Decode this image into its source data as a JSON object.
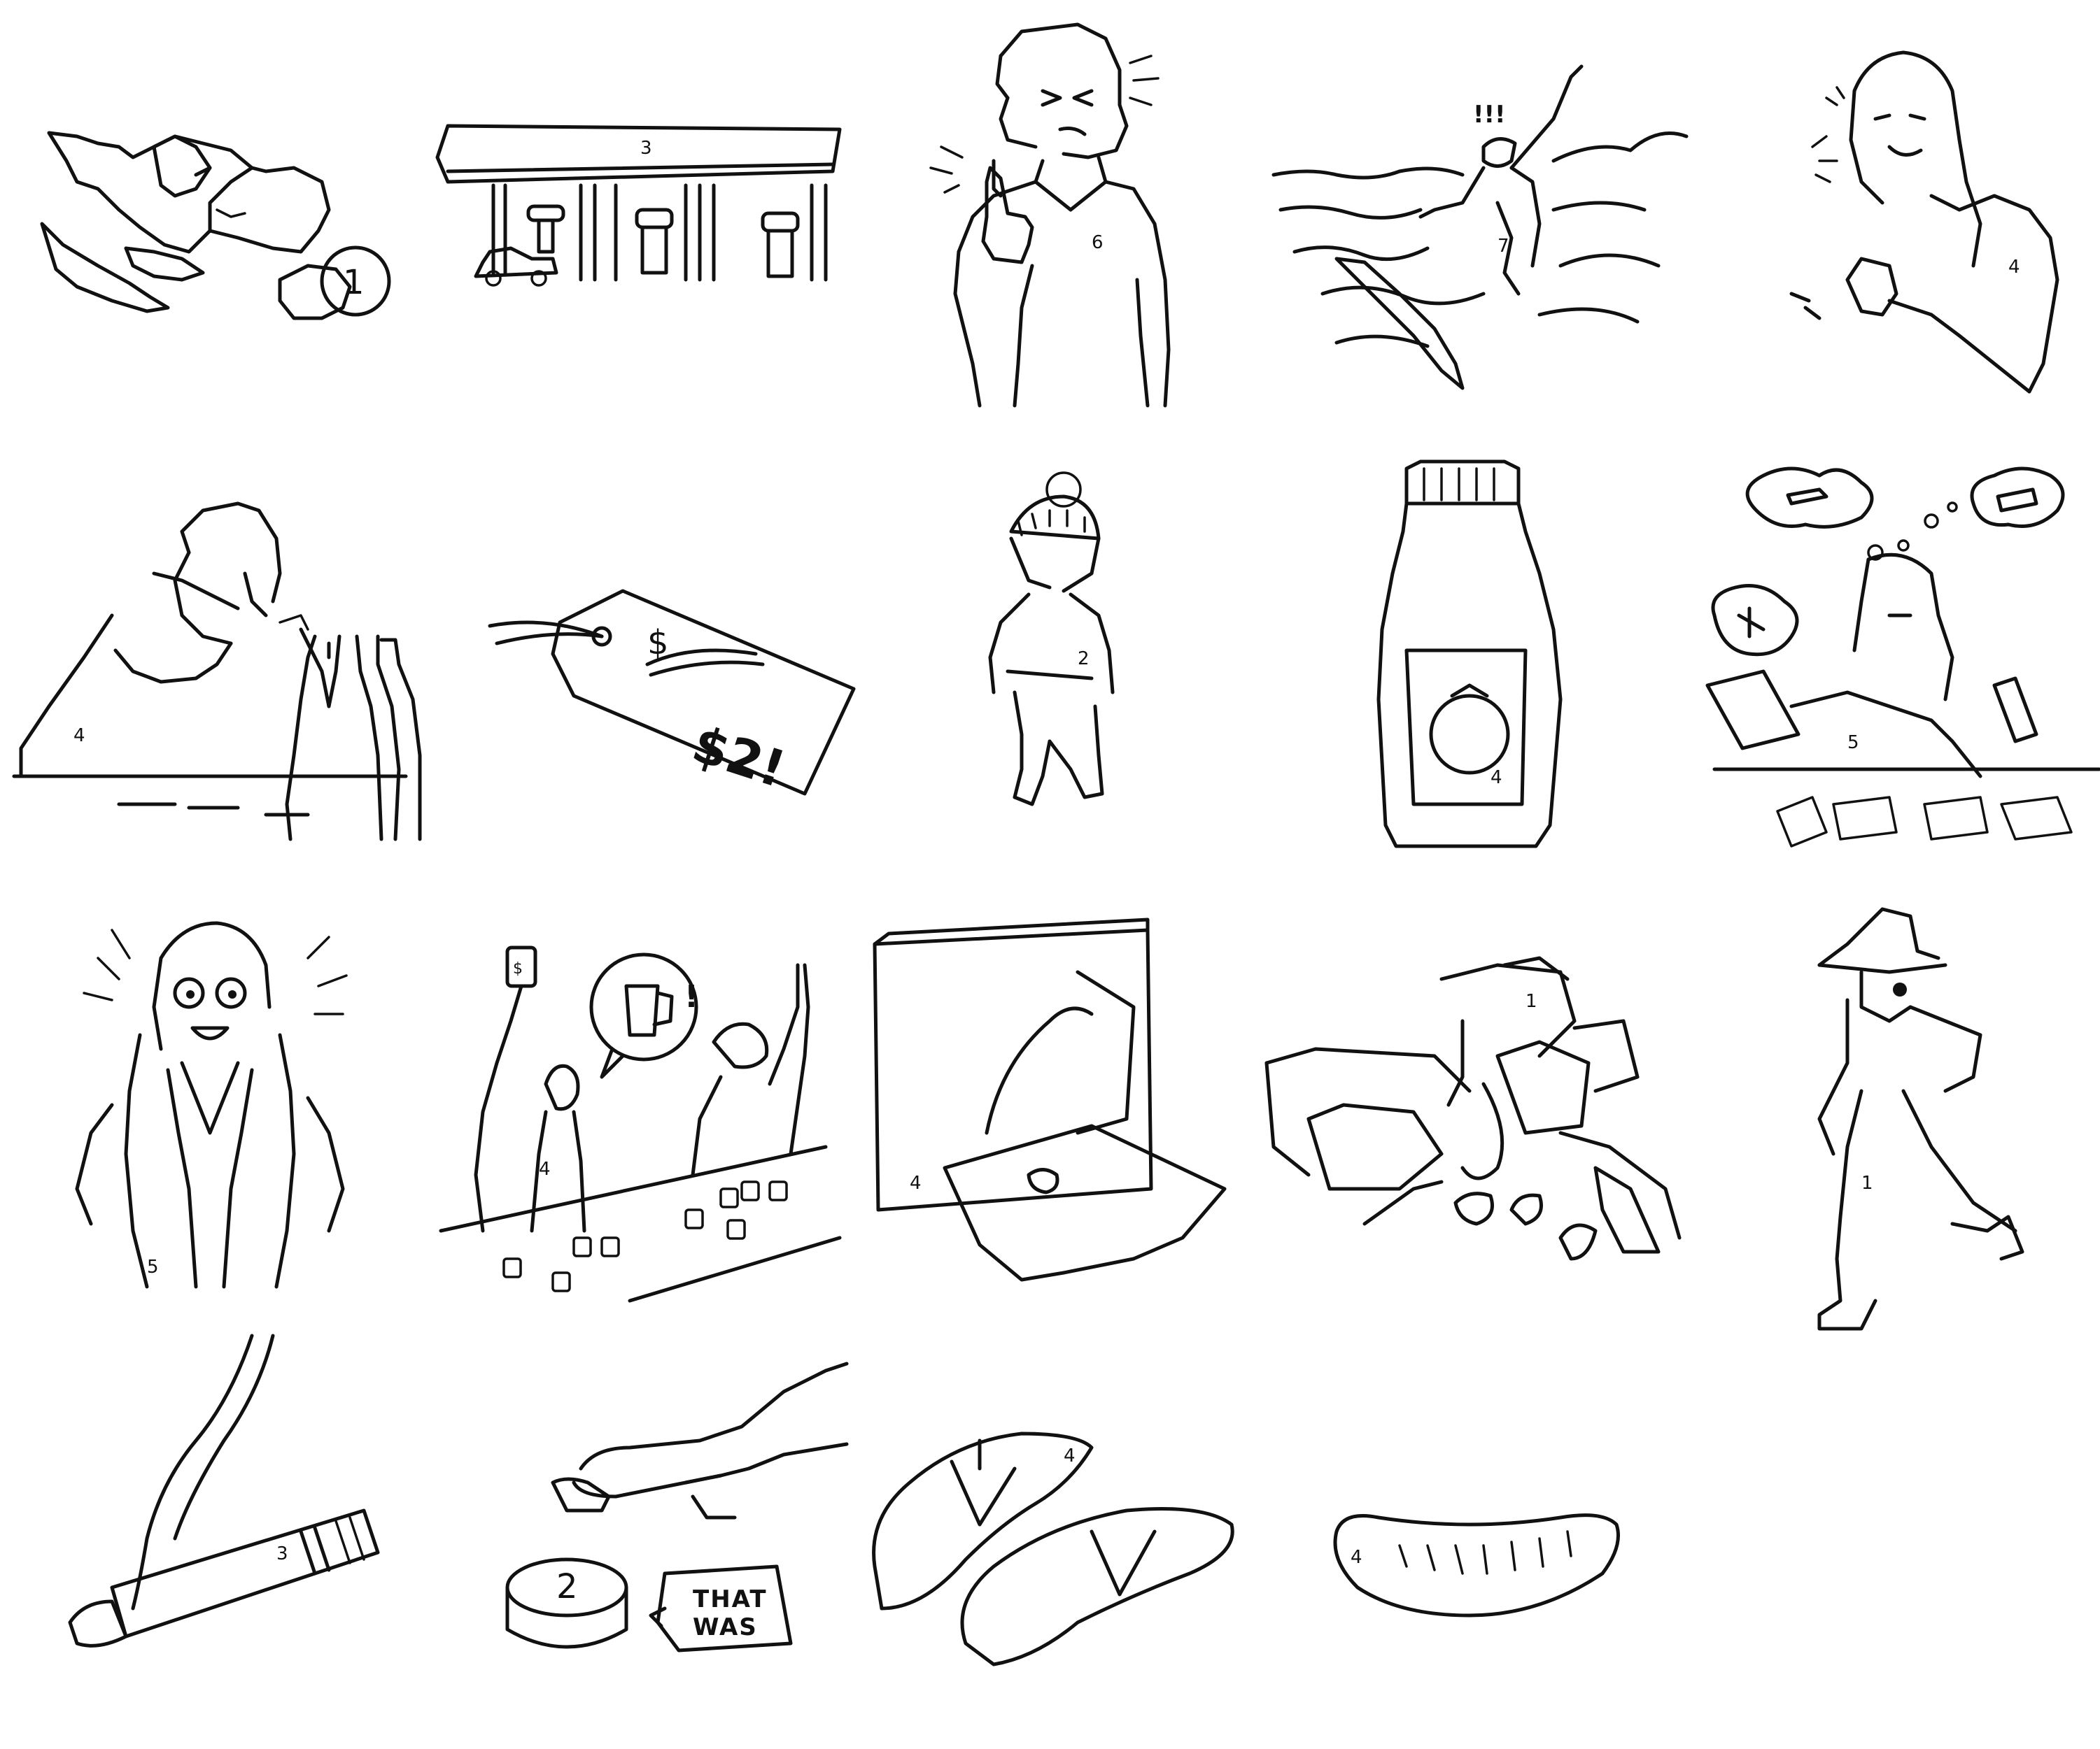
{
  "sheet": {
    "title": "",
    "colors": {
      "ink": "#111111",
      "paper": "#ffffff"
    }
  },
  "tiles": [
    {
      "key": "eggshells",
      "number": "1"
    },
    {
      "key": "gas-station",
      "number": "3"
    },
    {
      "key": "thumbs-up-man",
      "number": "6"
    },
    {
      "key": "surfer-wipeout",
      "number": "7",
      "marks": "!!!"
    },
    {
      "key": "woman-spilling-drink",
      "number": "4"
    },
    {
      "key": "hungover-man",
      "number": "4"
    },
    {
      "key": "price-tag",
      "number": "",
      "crossed_price": "$",
      "new_price": "$2!"
    },
    {
      "key": "toddler-winter",
      "number": "2"
    },
    {
      "key": "ketchup-bottle",
      "number": "4"
    },
    {
      "key": "stressed-woman",
      "number": "5"
    },
    {
      "key": "shocked-woman",
      "number": "5"
    },
    {
      "key": "bar-cheer",
      "number": "4",
      "speech": "!"
    },
    {
      "key": "whoopee-cushion",
      "number": "4"
    },
    {
      "key": "messy-room",
      "number": "1"
    },
    {
      "key": "spy-detective",
      "number": "1"
    },
    {
      "key": "cigarette",
      "number": "3"
    },
    {
      "key": "button-press",
      "number": "2",
      "button_label": "2",
      "speech_line1": "THAT",
      "speech_line2": "WAS"
    },
    {
      "key": "flip-flops",
      "number": "4"
    },
    {
      "key": "sausage",
      "number": "4"
    }
  ]
}
